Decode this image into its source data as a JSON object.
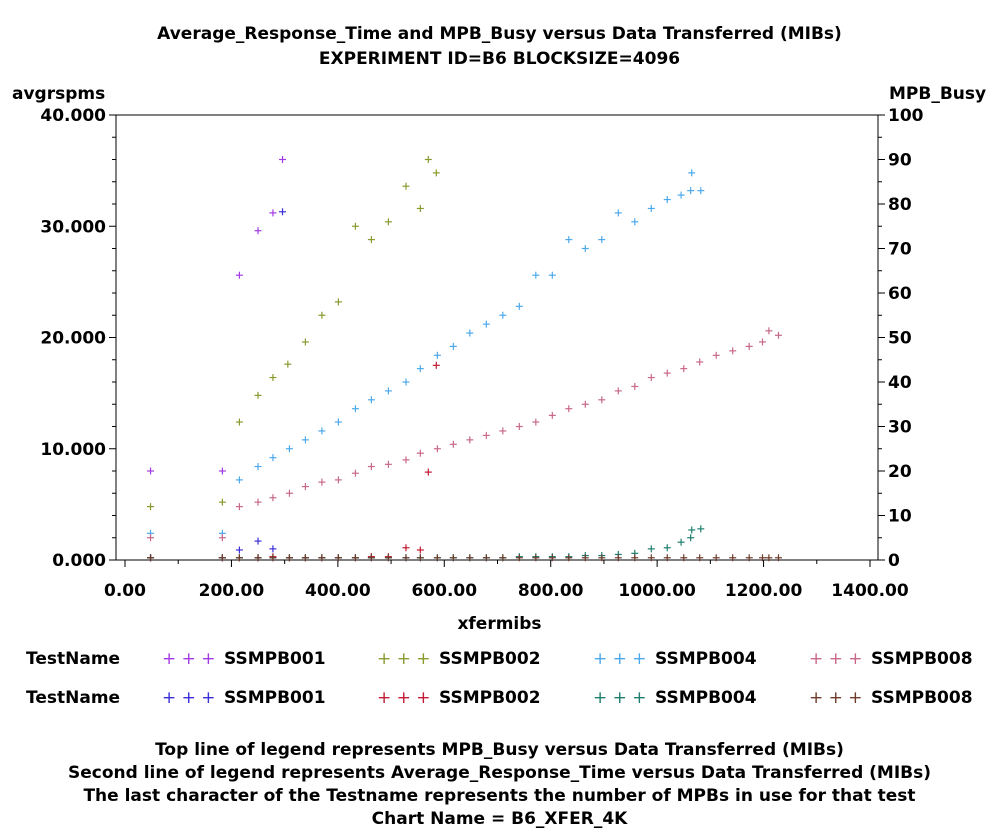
{
  "chart_data": {
    "type": "scatter",
    "title": "Average_Response_Time and MPB_Busy versus Data Transferred (MIBs)",
    "subtitle": "EXPERIMENT ID=B6 BLOCKSIZE=4096",
    "xlabel": "xfermibs",
    "ylabel_left": "avgrspms",
    "ylabel_right": "MPB_Busy",
    "xlim": [
      0,
      1400
    ],
    "ylim_left": [
      0,
      40
    ],
    "ylim_right": [
      0,
      100
    ],
    "x_ticks": [
      "0.00",
      "200.00",
      "400.00",
      "600.00",
      "800.00",
      "1000.00",
      "1200.00",
      "1400.00"
    ],
    "y_left_ticks": [
      "0.000",
      "10.000",
      "20.000",
      "30.000",
      "40.000"
    ],
    "y_right_ticks": [
      "0",
      "10",
      "20",
      "30",
      "40",
      "50",
      "60",
      "70",
      "80",
      "90",
      "100"
    ],
    "series": [
      {
        "name": "SSMPB001",
        "group": "MPB_Busy",
        "axis": "right",
        "color": "#A23BE3",
        "points": [
          [
            48,
            20
          ],
          [
            183,
            20
          ],
          [
            215,
            64
          ],
          [
            250,
            74
          ],
          [
            278,
            78
          ],
          [
            296,
            90
          ]
        ]
      },
      {
        "name": "SSMPB002",
        "group": "MPB_Busy",
        "axis": "right",
        "color": "#8A9A2E",
        "points": [
          [
            48,
            12
          ],
          [
            183,
            13
          ],
          [
            215,
            31
          ],
          [
            250,
            37
          ],
          [
            278,
            41
          ],
          [
            306,
            44
          ],
          [
            339,
            49
          ],
          [
            370,
            55
          ],
          [
            401,
            58
          ],
          [
            433,
            75
          ],
          [
            463,
            72
          ],
          [
            495,
            76
          ],
          [
            528,
            84
          ],
          [
            555,
            79
          ],
          [
            570,
            90
          ],
          [
            585,
            87
          ]
        ]
      },
      {
        "name": "SSMPB004",
        "group": "MPB_Busy",
        "axis": "right",
        "color": "#4DA9EB",
        "points": [
          [
            48,
            6
          ],
          [
            183,
            6
          ],
          [
            215,
            18
          ],
          [
            250,
            21
          ],
          [
            278,
            23
          ],
          [
            309,
            25
          ],
          [
            339,
            27
          ],
          [
            370,
            29
          ],
          [
            401,
            31
          ],
          [
            433,
            34
          ],
          [
            463,
            36
          ],
          [
            495,
            38
          ],
          [
            528,
            40
          ],
          [
            555,
            43
          ],
          [
            587,
            46
          ],
          [
            617,
            48
          ],
          [
            648,
            51
          ],
          [
            679,
            53
          ],
          [
            710,
            55
          ],
          [
            741,
            57
          ],
          [
            772,
            64
          ],
          [
            803,
            64
          ],
          [
            834,
            72
          ],
          [
            865,
            70
          ],
          [
            896,
            72
          ],
          [
            927,
            78
          ],
          [
            958,
            76
          ],
          [
            989,
            79
          ],
          [
            1019,
            81
          ],
          [
            1045,
            82
          ],
          [
            1063,
            83
          ],
          [
            1065,
            87
          ],
          [
            1082,
            83
          ]
        ]
      },
      {
        "name": "SSMPB008",
        "group": "MPB_Busy",
        "axis": "right",
        "color": "#C8688A",
        "points": [
          [
            48,
            5
          ],
          [
            183,
            5
          ],
          [
            215,
            12
          ],
          [
            250,
            13
          ],
          [
            278,
            14
          ],
          [
            309,
            15
          ],
          [
            339,
            16.5
          ],
          [
            370,
            17.5
          ],
          [
            401,
            18
          ],
          [
            433,
            19.5
          ],
          [
            463,
            21
          ],
          [
            495,
            21.5
          ],
          [
            528,
            22.5
          ],
          [
            555,
            24
          ],
          [
            587,
            25
          ],
          [
            617,
            26
          ],
          [
            648,
            27
          ],
          [
            679,
            28
          ],
          [
            710,
            29
          ],
          [
            741,
            30
          ],
          [
            772,
            31
          ],
          [
            803,
            32.5
          ],
          [
            834,
            34
          ],
          [
            865,
            35
          ],
          [
            896,
            36
          ],
          [
            927,
            38
          ],
          [
            958,
            39
          ],
          [
            989,
            41
          ],
          [
            1019,
            42
          ],
          [
            1050,
            43
          ],
          [
            1080,
            44.5
          ],
          [
            1111,
            46
          ],
          [
            1142,
            47
          ],
          [
            1173,
            48
          ],
          [
            1198,
            49
          ],
          [
            1210,
            51.5
          ],
          [
            1228,
            50.5
          ]
        ]
      },
      {
        "name": "SSMPB001",
        "group": "Average_Response_Time",
        "axis": "left",
        "color": "#3A2ED6",
        "points": [
          [
            48,
            0.2
          ],
          [
            183,
            0.2
          ],
          [
            215,
            0.9
          ],
          [
            250,
            1.7
          ],
          [
            278,
            1.0
          ],
          [
            296,
            31.3
          ]
        ]
      },
      {
        "name": "SSMPB002",
        "group": "Average_Response_Time",
        "axis": "left",
        "color": "#C01B33",
        "points": [
          [
            48,
            0.2
          ],
          [
            183,
            0.2
          ],
          [
            215,
            0.2
          ],
          [
            250,
            0.2
          ],
          [
            278,
            0.3
          ],
          [
            309,
            0.2
          ],
          [
            339,
            0.2
          ],
          [
            370,
            0.2
          ],
          [
            401,
            0.2
          ],
          [
            433,
            0.2
          ],
          [
            463,
            0.3
          ],
          [
            495,
            0.3
          ],
          [
            528,
            1.1
          ],
          [
            555,
            0.9
          ],
          [
            570,
            7.9
          ],
          [
            585,
            17.5
          ]
        ]
      },
      {
        "name": "SSMPB004",
        "group": "Average_Response_Time",
        "axis": "left",
        "color": "#1E7F6E",
        "points": [
          [
            48,
            0.2
          ],
          [
            183,
            0.2
          ],
          [
            215,
            0.2
          ],
          [
            250,
            0.2
          ],
          [
            278,
            0.2
          ],
          [
            309,
            0.2
          ],
          [
            339,
            0.2
          ],
          [
            370,
            0.2
          ],
          [
            401,
            0.2
          ],
          [
            433,
            0.2
          ],
          [
            463,
            0.2
          ],
          [
            495,
            0.2
          ],
          [
            528,
            0.2
          ],
          [
            555,
            0.2
          ],
          [
            587,
            0.2
          ],
          [
            617,
            0.2
          ],
          [
            648,
            0.2
          ],
          [
            679,
            0.2
          ],
          [
            710,
            0.2
          ],
          [
            741,
            0.3
          ],
          [
            772,
            0.3
          ],
          [
            803,
            0.3
          ],
          [
            834,
            0.3
          ],
          [
            865,
            0.4
          ],
          [
            896,
            0.4
          ],
          [
            927,
            0.5
          ],
          [
            958,
            0.6
          ],
          [
            989,
            1.0
          ],
          [
            1019,
            1.1
          ],
          [
            1045,
            1.6
          ],
          [
            1063,
            2.0
          ],
          [
            1065,
            2.7
          ],
          [
            1082,
            2.8
          ]
        ]
      },
      {
        "name": "SSMPB008",
        "group": "Average_Response_Time",
        "axis": "left",
        "color": "#6E3A2A",
        "points": [
          [
            48,
            0.2
          ],
          [
            183,
            0.2
          ],
          [
            215,
            0.2
          ],
          [
            250,
            0.2
          ],
          [
            278,
            0.2
          ],
          [
            309,
            0.2
          ],
          [
            339,
            0.2
          ],
          [
            370,
            0.2
          ],
          [
            401,
            0.2
          ],
          [
            433,
            0.2
          ],
          [
            463,
            0.2
          ],
          [
            495,
            0.2
          ],
          [
            528,
            0.2
          ],
          [
            555,
            0.2
          ],
          [
            587,
            0.2
          ],
          [
            617,
            0.2
          ],
          [
            648,
            0.2
          ],
          [
            679,
            0.2
          ],
          [
            710,
            0.2
          ],
          [
            741,
            0.2
          ],
          [
            772,
            0.2
          ],
          [
            803,
            0.2
          ],
          [
            834,
            0.2
          ],
          [
            865,
            0.2
          ],
          [
            896,
            0.2
          ],
          [
            927,
            0.2
          ],
          [
            958,
            0.2
          ],
          [
            989,
            0.2
          ],
          [
            1019,
            0.2
          ],
          [
            1050,
            0.2
          ],
          [
            1080,
            0.2
          ],
          [
            1111,
            0.2
          ],
          [
            1142,
            0.2
          ],
          [
            1173,
            0.2
          ],
          [
            1198,
            0.2
          ],
          [
            1210,
            0.2
          ],
          [
            1228,
            0.2
          ]
        ]
      }
    ]
  },
  "legend": {
    "row1": {
      "title": "TestName",
      "items": [
        {
          "label": "SSMPB001",
          "marks": "+ + +",
          "color": "#A23BE3"
        },
        {
          "label": "SSMPB002",
          "marks": "+ + +",
          "color": "#8A9A2E"
        },
        {
          "label": "SSMPB004",
          "marks": "+ + +",
          "color": "#4DA9EB"
        },
        {
          "label": "SSMPB008",
          "marks": "+ + +",
          "color": "#C8688A"
        }
      ]
    },
    "row2": {
      "title": "TestName",
      "items": [
        {
          "label": "SSMPB001",
          "marks": "+ + +",
          "color": "#3A2ED6"
        },
        {
          "label": "SSMPB002",
          "marks": "+ + +",
          "color": "#C01B33"
        },
        {
          "label": "SSMPB004",
          "marks": "+ + +",
          "color": "#1E7F6E"
        },
        {
          "label": "SSMPB008",
          "marks": "+ + +",
          "color": "#6E3A2A"
        }
      ]
    }
  },
  "footnotes": [
    "Top line of legend represents MPB_Busy versus Data Transferred (MIBs)",
    "Second line of legend represents Average_Response_Time versus Data Transferred (MIBs)",
    "The last character of the Testname represents the number of MPBs in use for that test",
    "Chart Name = B6_XFER_4K"
  ]
}
